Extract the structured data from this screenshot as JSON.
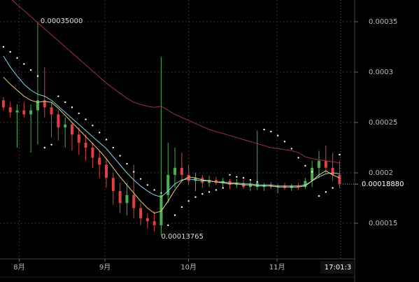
{
  "chart_data": {
    "type": "candlestick",
    "xlim": [
      -0.5,
      51.2
    ],
    "ylim": [
      0.0001146,
      0.0003715
    ],
    "yticks": [
      0.00035,
      0.0003,
      0.00025,
      0.0002,
      0.00015
    ],
    "xticks": [
      {
        "value": 2.3,
        "label": "8月"
      },
      {
        "value": 14.8,
        "label": "9月"
      },
      {
        "value": 27,
        "label": "10月"
      },
      {
        "value": 39.9,
        "label": "11月"
      }
    ],
    "grid": true,
    "up_color": "#4caf50",
    "down_color": "#e04040",
    "open": [
      0.000272,
      0.000265,
      0.00026,
      0.000262,
      0.000258,
      0.000262,
      0.000272,
      0.000265,
      0.000258,
      0.000245,
      0.000248,
      0.000238,
      0.00023,
      0.000225,
      0.000215,
      0.000208,
      0.000195,
      0.000182,
      0.00017,
      0.000178,
      0.000165,
      0.000155,
      0.000152,
      0.000148,
      0.000178,
      0.000198,
      0.000205,
      0.000198,
      0.000192,
      0.000195,
      0.00019,
      0.000193,
      0.00019,
      0.000192,
      0.000188,
      0.00019,
      0.000186,
      0.000186,
      0.000186,
      0.000188,
      0.000186,
      0.000187,
      0.000185,
      0.000187,
      0.000186,
      0.000192,
      0.000205,
      0.000212,
      0.000205,
      0.000198
    ],
    "high": [
      0.000275,
      0.00027,
      0.000268,
      0.00027,
      0.000268,
      0.00035,
      0.000305,
      0.00027,
      0.000262,
      0.000255,
      0.00025,
      0.000245,
      0.000238,
      0.00023,
      0.000222,
      0.000215,
      0.0002,
      0.00019,
      0.00019,
      0.000208,
      0.00017,
      0.00016,
      0.000162,
      0.000315,
      0.00023,
      0.000225,
      0.00022,
      0.000208,
      0.0002,
      0.000198,
      0.000197,
      0.000196,
      0.000195,
      0.000194,
      0.000194,
      0.000193,
      0.000192,
      0.000242,
      0.00019,
      0.000191,
      0.000189,
      0.00019,
      0.000189,
      0.00019,
      0.000195,
      0.000212,
      0.000222,
      0.000227,
      0.00022,
      0.000212
    ],
    "low": [
      0.000262,
      0.000255,
      0.000225,
      0.000255,
      0.00022,
      0.000228,
      0.000255,
      0.000235,
      0.000232,
      0.000225,
      0.000222,
      0.000218,
      0.000212,
      0.000205,
      0.000195,
      0.000185,
      0.000168,
      0.00016,
      0.000158,
      0.000155,
      0.000148,
      0.000145,
      0.000142,
      0.00013765,
      0.00017,
      0.000185,
      0.000192,
      0.000188,
      0.000182,
      0.000185,
      0.000186,
      0.000188,
      0.000185,
      0.000184,
      0.000185,
      0.000184,
      0.000182,
      0.000183,
      0.000182,
      0.000184,
      0.00018,
      0.000183,
      0.000182,
      0.000183,
      0.000184,
      0.000186,
      0.000195,
      0.0002,
      0.000192,
      0.000185
    ],
    "close": [
      0.000265,
      0.00026,
      0.000262,
      0.000258,
      0.000262,
      0.000272,
      0.000265,
      0.000258,
      0.000245,
      0.000248,
      0.000238,
      0.00023,
      0.000225,
      0.000215,
      0.000208,
      0.000195,
      0.000182,
      0.00017,
      0.000178,
      0.000165,
      0.000155,
      0.000152,
      0.000148,
      0.000178,
      0.000198,
      0.000205,
      0.000198,
      0.000192,
      0.000195,
      0.00019,
      0.000193,
      0.00019,
      0.000192,
      0.000188,
      0.00019,
      0.000186,
      0.000189,
      0.00019,
      0.000188,
      0.000186,
      0.000187,
      0.000185,
      0.000187,
      0.000186,
      0.000192,
      0.000205,
      0.000212,
      0.000205,
      0.000198,
      0.0001888
    ],
    "series": [
      {
        "color": "#a0304a",
        "values": [
          0.000378,
          0.000373,
          0.000367,
          0.000361,
          0.000355,
          0.000349,
          0.000343,
          0.000337,
          0.000331,
          0.000325,
          0.000319,
          0.000313,
          0.000307,
          0.000301,
          0.000295,
          0.000289,
          0.000284,
          0.000279,
          0.000274,
          0.00027,
          0.000268,
          0.000266,
          0.000265,
          0.000266,
          0.000262,
          0.000258,
          0.000255,
          0.000252,
          0.000249,
          0.000246,
          0.000243,
          0.000241,
          0.000239,
          0.000237,
          0.000235,
          0.000233,
          0.000231,
          0.000229,
          0.000227,
          0.000225,
          0.000224,
          0.000223,
          0.000222,
          0.00022,
          0.000216,
          0.000214,
          0.000213,
          0.000212,
          0.000211,
          0.00021
        ]
      },
      {
        "color": "#7fd8e8",
        "values": [
          0.000316,
          0.000305,
          0.000296,
          0.000288,
          0.000282,
          0.000278,
          0.000276,
          0.000272,
          0.000266,
          0.00026,
          0.000254,
          0.000248,
          0.000242,
          0.000236,
          0.00023,
          0.000224,
          0.000216,
          0.000208,
          0.0002,
          0.000193,
          0.000187,
          0.000182,
          0.000178,
          0.000176,
          0.000182,
          0.000189,
          0.000193,
          0.000194,
          0.000193,
          0.000192,
          0.000192,
          0.000191,
          0.000191,
          0.00019,
          0.00019,
          0.000189,
          0.000189,
          0.000188,
          0.000188,
          0.000188,
          0.000187,
          0.000187,
          0.000187,
          0.000187,
          0.000188,
          0.000192,
          0.000196,
          0.000199,
          0.0002,
          0.000199
        ]
      },
      {
        "color": "#e8d27a",
        "values": [
          0.000295,
          0.000288,
          0.000282,
          0.000276,
          0.000272,
          0.00027,
          0.000271,
          0.00027,
          0.000264,
          0.000257,
          0.00025,
          0.000243,
          0.000236,
          0.000229,
          0.000222,
          0.000214,
          0.000205,
          0.000196,
          0.000188,
          0.00018,
          0.000172,
          0.000165,
          0.00016,
          0.000162,
          0.000172,
          0.000183,
          0.000192,
          0.000196,
          0.000195,
          0.000193,
          0.000192,
          0.000191,
          0.00019,
          0.000189,
          0.000189,
          0.000188,
          0.000188,
          0.000187,
          0.000187,
          0.000187,
          0.000186,
          0.000186,
          0.000186,
          0.000186,
          0.000187,
          0.000192,
          0.000198,
          0.000202,
          0.000198,
          0.000195
        ]
      }
    ],
    "sar": {
      "color": "#ffffff",
      "values": [
        0.000325,
        0.00032,
        0.000314,
        0.000308,
        0.000302,
        0.000296,
        0.000225,
        0.000228,
        0.000276,
        0.00027,
        0.000265,
        0.000259,
        0.000253,
        0.000247,
        0.00024,
        0.000233,
        0.000225,
        0.000217,
        0.000209,
        0.000201,
        0.000194,
        0.000188,
        0.000183,
        0.00018,
        0.000148,
        0.000158,
        0.000166,
        0.000172,
        0.000176,
        0.000179,
        0.000181,
        0.000183,
        0.000185,
        0.000198,
        0.000196,
        0.000195,
        0.000193,
        0.000191,
        0.000243,
        0.000241,
        0.000237,
        0.000231,
        0.000224,
        0.000215,
        0.000207,
        0.000201,
        0.000177,
        0.000181,
        0.000185,
        0.000218
      ]
    },
    "max_label": {
      "value": 0.00035,
      "label": "0.00035000",
      "index": 5
    },
    "min_label": {
      "value": 0.00013765,
      "label": "0.00013765",
      "index": 23
    },
    "last_price": {
      "value": 0.0001888,
      "label": "0.00018880"
    },
    "crosshair_label": "17:01:3"
  }
}
